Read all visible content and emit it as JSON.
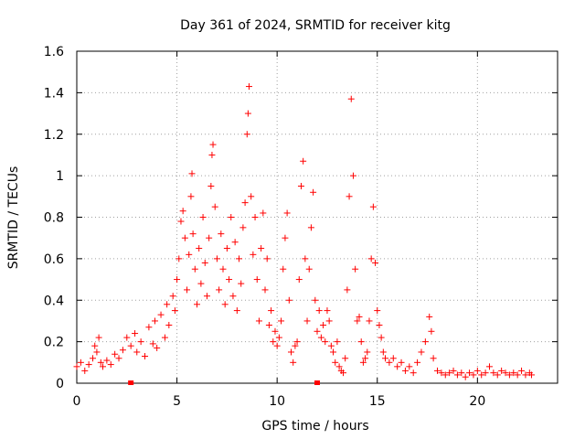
{
  "chart_data": {
    "type": "scatter",
    "title": "Day 361 of 2024, SRMTID for receiver kitg",
    "xlabel": "GPS time / hours",
    "ylabel": "SRMTID / TECUs",
    "xlim": [
      0,
      24
    ],
    "ylim": [
      0,
      1.6
    ],
    "x_ticks": [
      0,
      5,
      10,
      15,
      20
    ],
    "x_tick_labels": [
      "0",
      "5",
      "10",
      "15",
      "20"
    ],
    "y_ticks": [
      0,
      0.2,
      0.4,
      0.6,
      0.8,
      1.0,
      1.2,
      1.4,
      1.6
    ],
    "y_tick_labels": [
      "0",
      "0.2",
      "0.4",
      "0.6",
      "0.8",
      "1",
      "1.2",
      "1.4",
      "1.6"
    ],
    "grid": true,
    "marker": "+",
    "color": "#ff0000",
    "series": [
      {
        "name": "SRMTID",
        "points": [
          [
            0.0,
            0.08
          ],
          [
            0.2,
            0.1
          ],
          [
            0.4,
            0.06
          ],
          [
            0.6,
            0.09
          ],
          [
            0.8,
            0.12
          ],
          [
            0.9,
            0.18
          ],
          [
            1.0,
            0.15
          ],
          [
            1.1,
            0.22
          ],
          [
            1.2,
            0.1
          ],
          [
            1.3,
            0.08
          ],
          [
            1.5,
            0.11
          ],
          [
            1.7,
            0.09
          ],
          [
            1.9,
            0.14
          ],
          [
            2.1,
            0.12
          ],
          [
            2.3,
            0.16
          ],
          [
            2.5,
            0.22
          ],
          [
            2.7,
            0.18
          ],
          [
            2.9,
            0.24
          ],
          [
            3.0,
            0.15
          ],
          [
            3.2,
            0.2
          ],
          [
            3.4,
            0.13
          ],
          [
            3.6,
            0.27
          ],
          [
            3.8,
            0.19
          ],
          [
            3.9,
            0.3
          ],
          [
            4.0,
            0.17
          ],
          [
            4.2,
            0.33
          ],
          [
            4.4,
            0.22
          ],
          [
            4.5,
            0.38
          ],
          [
            4.6,
            0.28
          ],
          [
            4.8,
            0.42
          ],
          [
            4.9,
            0.35
          ],
          [
            5.0,
            0.5
          ],
          [
            5.1,
            0.6
          ],
          [
            5.2,
            0.78
          ],
          [
            5.3,
            0.83
          ],
          [
            5.4,
            0.7
          ],
          [
            5.5,
            0.45
          ],
          [
            5.6,
            0.62
          ],
          [
            5.7,
            0.9
          ],
          [
            5.75,
            1.01
          ],
          [
            5.8,
            0.72
          ],
          [
            5.9,
            0.55
          ],
          [
            6.0,
            0.38
          ],
          [
            6.1,
            0.65
          ],
          [
            6.2,
            0.48
          ],
          [
            6.3,
            0.8
          ],
          [
            6.4,
            0.58
          ],
          [
            6.5,
            0.42
          ],
          [
            6.6,
            0.7
          ],
          [
            6.7,
            0.95
          ],
          [
            6.75,
            1.1
          ],
          [
            6.8,
            1.15
          ],
          [
            6.9,
            0.85
          ],
          [
            7.0,
            0.6
          ],
          [
            7.1,
            0.45
          ],
          [
            7.2,
            0.72
          ],
          [
            7.3,
            0.55
          ],
          [
            7.4,
            0.38
          ],
          [
            7.5,
            0.65
          ],
          [
            7.6,
            0.5
          ],
          [
            7.7,
            0.8
          ],
          [
            7.8,
            0.42
          ],
          [
            7.9,
            0.68
          ],
          [
            8.0,
            0.35
          ],
          [
            8.1,
            0.6
          ],
          [
            8.2,
            0.48
          ],
          [
            8.3,
            0.75
          ],
          [
            8.4,
            0.87
          ],
          [
            8.5,
            1.2
          ],
          [
            8.55,
            1.3
          ],
          [
            8.6,
            1.43
          ],
          [
            8.7,
            0.9
          ],
          [
            8.8,
            0.62
          ],
          [
            8.9,
            0.8
          ],
          [
            9.0,
            0.5
          ],
          [
            9.1,
            0.3
          ],
          [
            9.2,
            0.65
          ],
          [
            9.3,
            0.82
          ],
          [
            9.4,
            0.45
          ],
          [
            9.5,
            0.6
          ],
          [
            9.6,
            0.28
          ],
          [
            9.7,
            0.35
          ],
          [
            9.8,
            0.2
          ],
          [
            9.9,
            0.25
          ],
          [
            10.0,
            0.18
          ],
          [
            10.1,
            0.22
          ],
          [
            10.2,
            0.3
          ],
          [
            10.3,
            0.55
          ],
          [
            10.4,
            0.7
          ],
          [
            10.5,
            0.82
          ],
          [
            10.6,
            0.4
          ],
          [
            10.7,
            0.15
          ],
          [
            10.8,
            0.1
          ],
          [
            10.9,
            0.18
          ],
          [
            11.0,
            0.2
          ],
          [
            11.1,
            0.5
          ],
          [
            11.2,
            0.95
          ],
          [
            11.3,
            1.07
          ],
          [
            11.4,
            0.6
          ],
          [
            11.5,
            0.3
          ],
          [
            11.6,
            0.55
          ],
          [
            11.7,
            0.75
          ],
          [
            11.8,
            0.92
          ],
          [
            11.9,
            0.4
          ],
          [
            12.0,
            0.25
          ],
          [
            12.1,
            0.35
          ],
          [
            12.2,
            0.22
          ],
          [
            12.3,
            0.28
          ],
          [
            12.4,
            0.2
          ],
          [
            12.5,
            0.35
          ],
          [
            12.6,
            0.3
          ],
          [
            12.7,
            0.18
          ],
          [
            12.8,
            0.15
          ],
          [
            12.9,
            0.1
          ],
          [
            13.0,
            0.2
          ],
          [
            13.1,
            0.08
          ],
          [
            13.2,
            0.06
          ],
          [
            13.3,
            0.05
          ],
          [
            13.4,
            0.12
          ],
          [
            13.5,
            0.45
          ],
          [
            13.6,
            0.9
          ],
          [
            13.7,
            1.37
          ],
          [
            13.8,
            1.0
          ],
          [
            13.9,
            0.55
          ],
          [
            14.0,
            0.3
          ],
          [
            14.1,
            0.32
          ],
          [
            14.2,
            0.2
          ],
          [
            14.3,
            0.1
          ],
          [
            14.4,
            0.12
          ],
          [
            14.5,
            0.15
          ],
          [
            14.6,
            0.3
          ],
          [
            14.7,
            0.6
          ],
          [
            14.8,
            0.85
          ],
          [
            14.9,
            0.58
          ],
          [
            15.0,
            0.35
          ],
          [
            15.1,
            0.28
          ],
          [
            15.2,
            0.22
          ],
          [
            15.3,
            0.15
          ],
          [
            15.4,
            0.12
          ],
          [
            15.6,
            0.1
          ],
          [
            15.8,
            0.12
          ],
          [
            16.0,
            0.08
          ],
          [
            16.2,
            0.1
          ],
          [
            16.4,
            0.06
          ],
          [
            16.6,
            0.08
          ],
          [
            16.8,
            0.05
          ],
          [
            17.0,
            0.1
          ],
          [
            17.2,
            0.15
          ],
          [
            17.4,
            0.2
          ],
          [
            17.6,
            0.32
          ],
          [
            17.7,
            0.25
          ],
          [
            17.8,
            0.12
          ],
          [
            18.0,
            0.06
          ],
          [
            18.2,
            0.05
          ],
          [
            18.4,
            0.04
          ],
          [
            18.6,
            0.05
          ],
          [
            18.8,
            0.06
          ],
          [
            19.0,
            0.04
          ],
          [
            19.2,
            0.05
          ],
          [
            19.4,
            0.03
          ],
          [
            19.6,
            0.05
          ],
          [
            19.8,
            0.04
          ],
          [
            20.0,
            0.06
          ],
          [
            20.2,
            0.04
          ],
          [
            20.4,
            0.05
          ],
          [
            20.6,
            0.08
          ],
          [
            20.8,
            0.05
          ],
          [
            21.0,
            0.04
          ],
          [
            21.2,
            0.06
          ],
          [
            21.4,
            0.05
          ],
          [
            21.6,
            0.04
          ],
          [
            21.8,
            0.05
          ],
          [
            22.0,
            0.04
          ],
          [
            22.2,
            0.06
          ],
          [
            22.4,
            0.04
          ],
          [
            22.6,
            0.05
          ],
          [
            22.7,
            0.04
          ]
        ]
      }
    ],
    "markers_on_axis": [
      {
        "x": 2.7,
        "y": 0.0
      },
      {
        "x": 12.0,
        "y": 0.0
      }
    ]
  }
}
